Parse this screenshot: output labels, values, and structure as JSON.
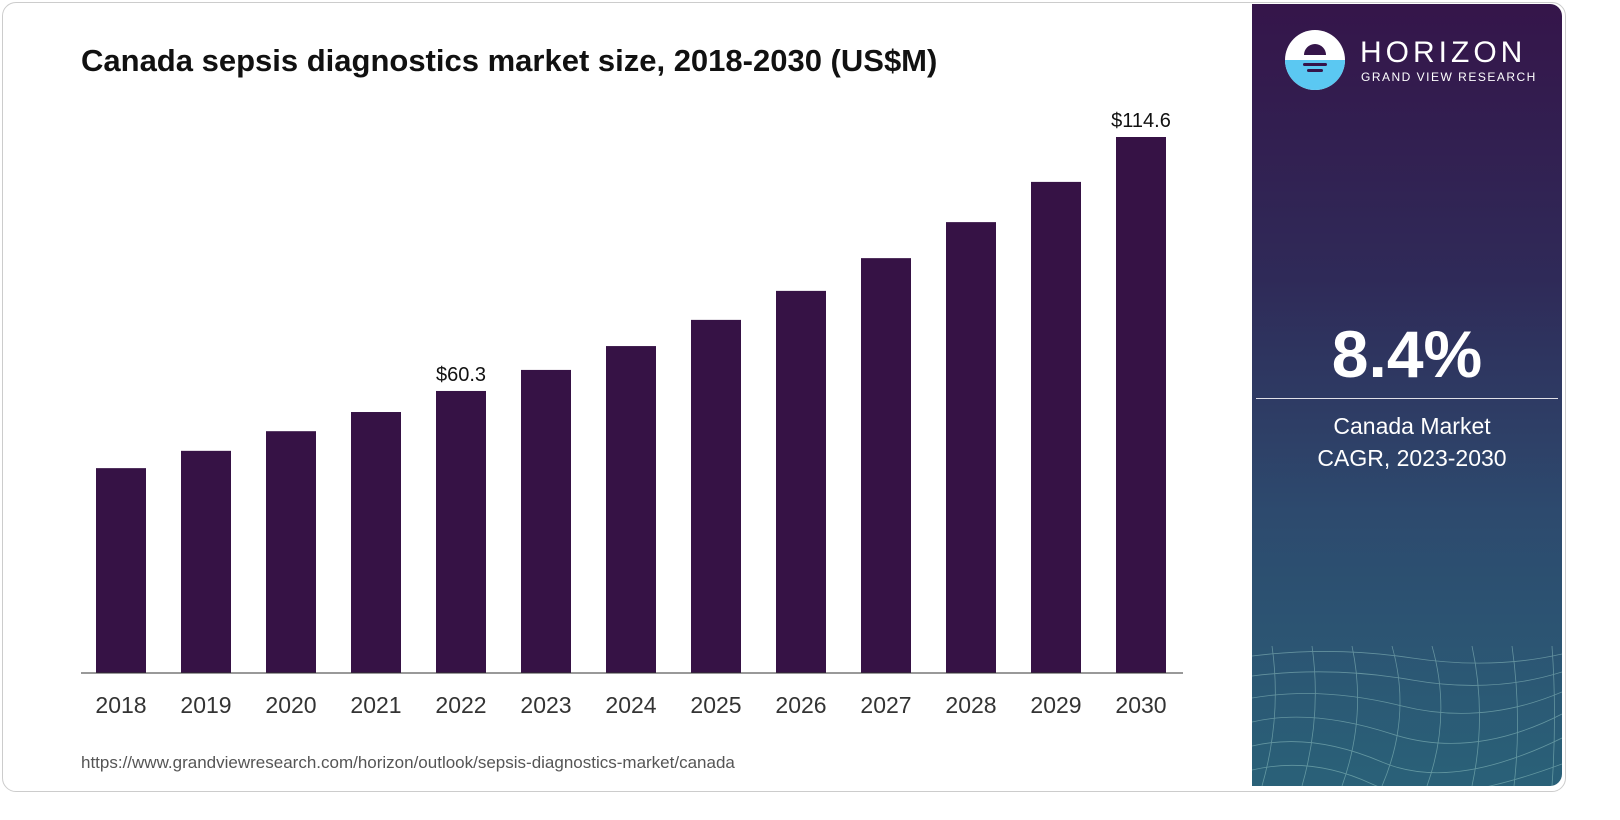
{
  "chart_data": {
    "type": "bar",
    "title": "Canada sepsis diagnostics market size, 2018-2030 (US$M)",
    "categories": [
      "2018",
      "2019",
      "2020",
      "2021",
      "2022",
      "2023",
      "2024",
      "2025",
      "2026",
      "2027",
      "2028",
      "2029",
      "2030"
    ],
    "values": [
      43.8,
      47.5,
      51.7,
      55.8,
      60.3,
      64.8,
      69.9,
      75.5,
      81.7,
      88.7,
      96.4,
      105.0,
      114.6
    ],
    "data_labels": {
      "2022": "$60.3",
      "2030": "$114.6"
    },
    "xlabel": "",
    "ylabel": "",
    "ylim": [
      0,
      114.6
    ],
    "grid": false,
    "bar_color": "#361245"
  },
  "source": "https://www.grandviewresearch.com/horizon/outlook/sepsis-diagnostics-market/canada",
  "panel": {
    "brand": "HORIZON",
    "brand_sub": "GRAND VIEW RESEARCH",
    "cagr": "8.4%",
    "cagr_label_1": "Canada Market",
    "cagr_label_2": "CAGR, 2023-2030"
  }
}
